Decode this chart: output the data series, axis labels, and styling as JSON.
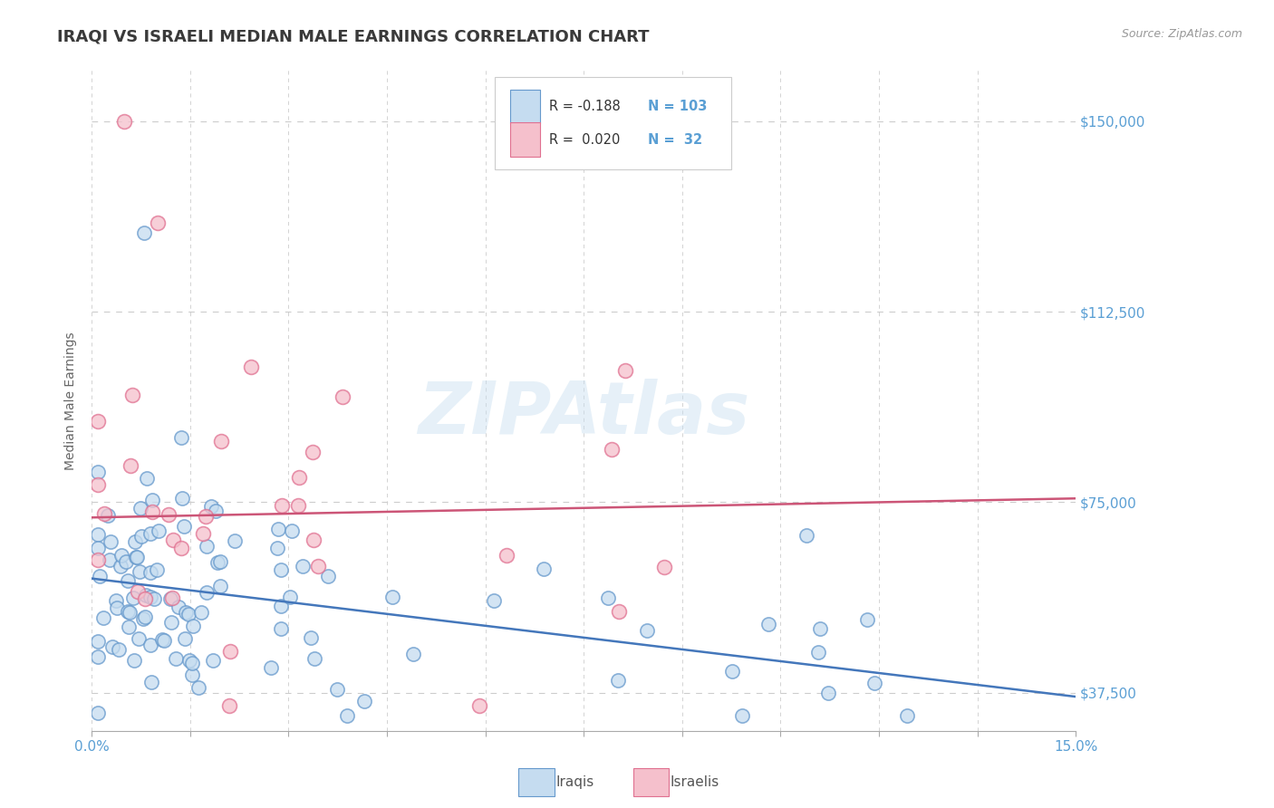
{
  "title": "IRAQI VS ISRAELI MEDIAN MALE EARNINGS CORRELATION CHART",
  "source": "Source: ZipAtlas.com",
  "ylabel": "Median Male Earnings",
  "xlim": [
    0.0,
    0.15
  ],
  "ylim": [
    30000,
    160000
  ],
  "yticks": [
    37500,
    75000,
    112500,
    150000
  ],
  "ytick_labels": [
    "$37,500",
    "$75,000",
    "$112,500",
    "$150,000"
  ],
  "minor_xticks": [
    0.0,
    0.015,
    0.03,
    0.045,
    0.06,
    0.075,
    0.09,
    0.105,
    0.12,
    0.135,
    0.15
  ],
  "title_color": "#3a3a3a",
  "title_fontsize": 13,
  "tick_color": "#5a9fd4",
  "background_color": "#ffffff",
  "grid_color": "#cccccc",
  "watermark_text": "ZIPAtlas",
  "watermark_color": "#c8dff0",
  "watermark_alpha": 0.45,
  "iraqi_face_color": "#c5dcf0",
  "iraqi_edge_color": "#6699cc",
  "israeli_face_color": "#f5c0cc",
  "israeli_edge_color": "#e07090",
  "iraqi_line_color": "#4477bb",
  "israeli_line_color": "#cc5577",
  "legend_label1": "Iraqis",
  "legend_label2": "Israelis",
  "iraqi_N": 103,
  "israeli_N": 32,
  "iraqi_intercept": 60000,
  "iraqi_slope": -155000,
  "israeli_intercept": 72000,
  "israeli_slope": 25000
}
